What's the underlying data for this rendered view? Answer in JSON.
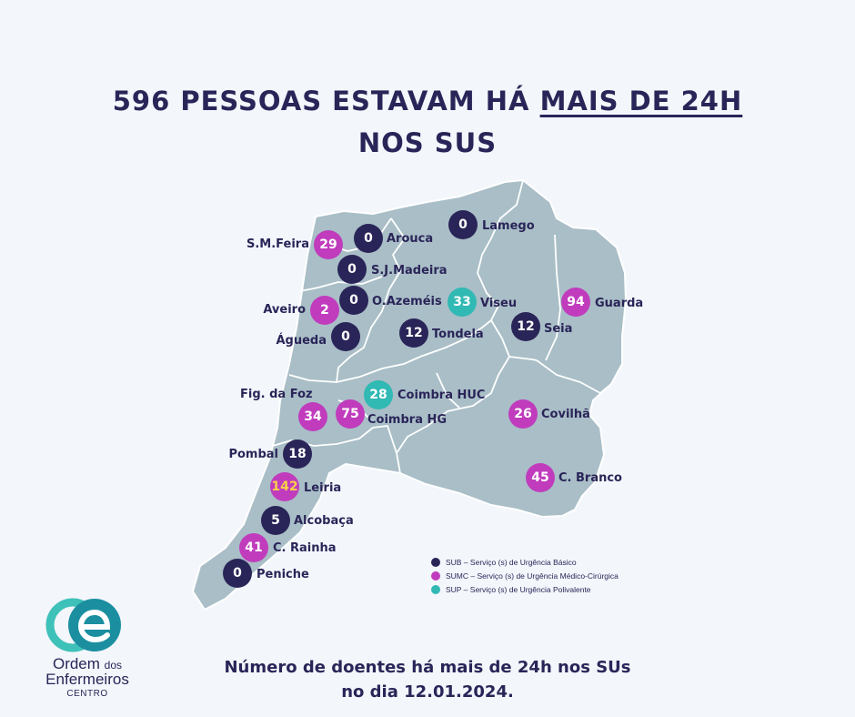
{
  "title": {
    "line1_prefix": "596 PESSOAS ESTAVAM HÁ ",
    "line1_underlined": "MAIS DE 24H",
    "line2": "NOS SUS"
  },
  "colors": {
    "sub": "#2a2558",
    "sumc": "#c03cbd",
    "sup": "#31b9b4",
    "map_fill": "#a9bec7",
    "background": "#f3f6fb"
  },
  "markers": [
    {
      "name": "S.M.Feira",
      "value": "29",
      "type": "sumc"
    },
    {
      "name": "Arouca",
      "value": "0",
      "type": "sub"
    },
    {
      "name": "Lamego",
      "value": "0",
      "type": "sub"
    },
    {
      "name": "S.J.Madeira",
      "value": "0",
      "type": "sub"
    },
    {
      "name": "O.Azeméis",
      "value": "0",
      "type": "sub"
    },
    {
      "name": "Aveiro",
      "value": "2",
      "type": "sumc"
    },
    {
      "name": "Águeda",
      "value": "0",
      "type": "sub"
    },
    {
      "name": "Viseu",
      "value": "33",
      "type": "sup"
    },
    {
      "name": "Guarda",
      "value": "94",
      "type": "sumc"
    },
    {
      "name": "Tondela",
      "value": "12",
      "type": "sub"
    },
    {
      "name": "Seia",
      "value": "12",
      "type": "sub"
    },
    {
      "name": "Coimbra HUC",
      "value": "28",
      "type": "sup"
    },
    {
      "name": "Fig. da Foz",
      "value": "34",
      "type": "sumc"
    },
    {
      "name": "Coimbra HG",
      "value": "75",
      "type": "sumc"
    },
    {
      "name": "Covilhã",
      "value": "26",
      "type": "sumc"
    },
    {
      "name": "Pombal",
      "value": "18",
      "type": "sub"
    },
    {
      "name": "C. Branco",
      "value": "45",
      "type": "sumc"
    },
    {
      "name": "Leiria",
      "value": "142",
      "type": "sumc"
    },
    {
      "name": "Alcobaça",
      "value": "5",
      "type": "sub"
    },
    {
      "name": "C. Rainha",
      "value": "41",
      "type": "sumc"
    },
    {
      "name": "Peniche",
      "value": "0",
      "type": "sub"
    }
  ],
  "legend": [
    {
      "type": "sub",
      "text": "SUB – Serviço (s) de Urgência Básico"
    },
    {
      "type": "sumc",
      "text": "SUMC – Serviço (s) de Urgência Médico-Cirúrgica"
    },
    {
      "type": "sup",
      "text": "SUP – Serviço (s) de Urgência Polivalente"
    }
  ],
  "footer": {
    "line1": "Número de doentes há mais de 24h nos SUs",
    "line2": "no dia 12.01.2024."
  },
  "logo": {
    "line1": "Ordem",
    "line1_small": "dos",
    "line2": "Enfermeiros",
    "line3": "CENTRO"
  }
}
